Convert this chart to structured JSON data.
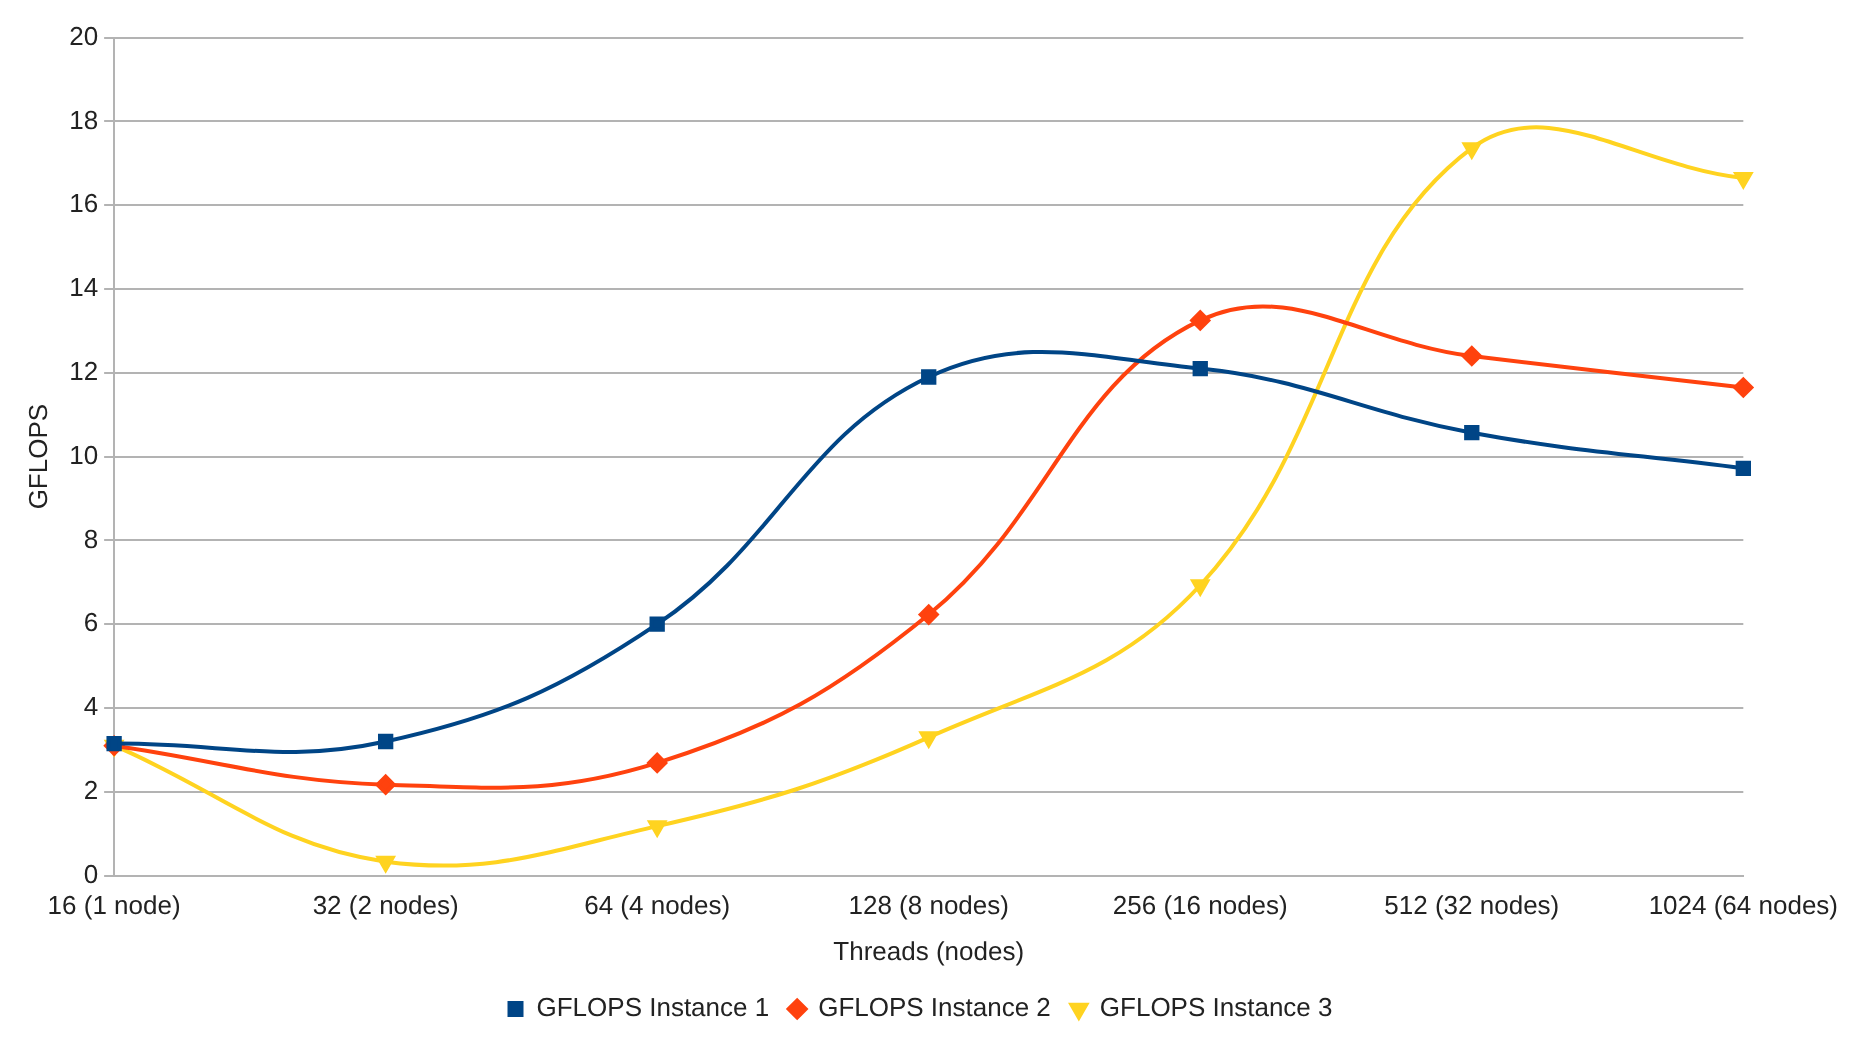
{
  "chart_data": {
    "type": "line",
    "xlabel": "Threads (nodes)",
    "ylabel": "GFLOPS",
    "categories": [
      "16 (1 node)",
      "32 (2 nodes)",
      "64 (4 nodes)",
      "128 (8 nodes)",
      "256 (16 nodes)",
      "512 (32 nodes)",
      "1024 (64 nodes)"
    ],
    "series": [
      {
        "name": "GFLOPS Instance 1",
        "color": "#004586",
        "marker": "square",
        "values": [
          3.15,
          3.2,
          6.0,
          11.9,
          12.1,
          10.57,
          9.72
        ]
      },
      {
        "name": "GFLOPS Instance 2",
        "color": "#ff420e",
        "marker": "diamond",
        "values": [
          3.1,
          2.17,
          2.69,
          6.23,
          13.25,
          12.4,
          11.65
        ]
      },
      {
        "name": "GFLOPS Instance 3",
        "color": "#ffd320",
        "marker": "triangle",
        "values": [
          3.1,
          0.33,
          1.18,
          3.3,
          6.93,
          17.36,
          16.65
        ]
      }
    ],
    "ylim": [
      0,
      20
    ],
    "yticks": [
      0,
      2,
      4,
      6,
      8,
      10,
      12,
      14,
      16,
      18,
      20
    ],
    "grid": "y",
    "legend": "bottom"
  }
}
